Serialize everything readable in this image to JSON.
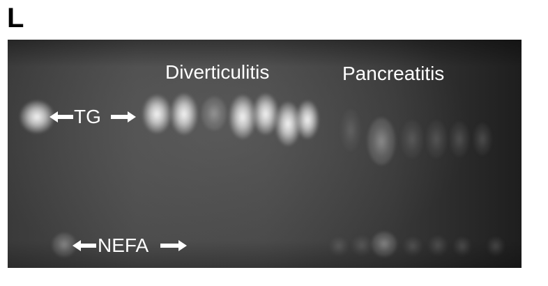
{
  "figure": {
    "panel_letter": "L",
    "groups": {
      "left": "Diverticulitis",
      "right": "Pancreatitis"
    },
    "markers": {
      "tg": "TG",
      "nefa": "NEFA"
    },
    "colors": {
      "gel_background": "#3a3a3a",
      "band": "#ffffff",
      "label": "#ffffff",
      "panel_letter": "#000000"
    },
    "icons": [
      "double-headed-arrow-icon"
    ]
  }
}
